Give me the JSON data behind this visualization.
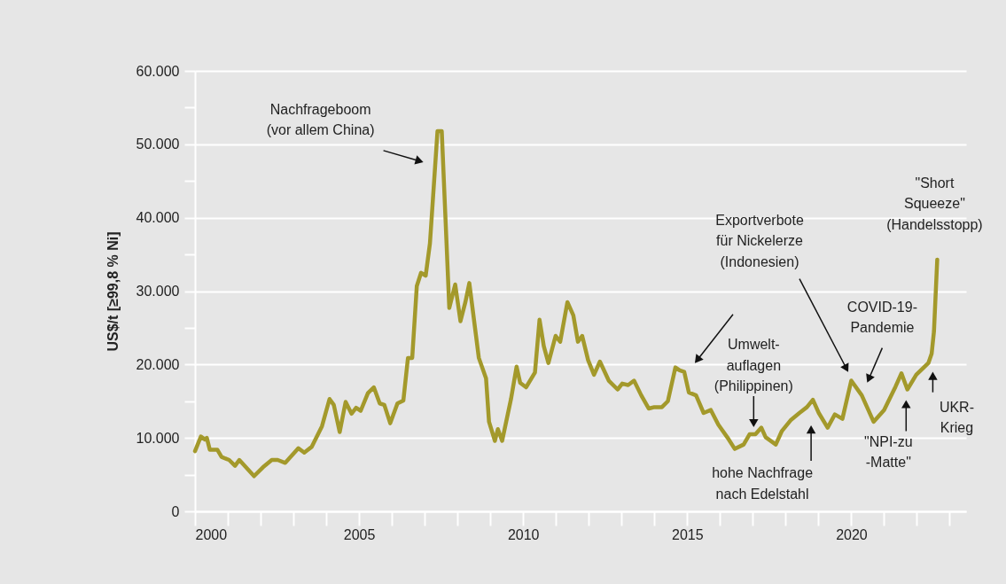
{
  "chart_data": {
    "type": "line",
    "ylabel": "US$/t [≥99,8 % Ni]",
    "x": [
      2000.0,
      2000.18,
      2000.3,
      2000.36,
      2000.45,
      2000.68,
      2000.81,
      2001.04,
      2001.22,
      2001.35,
      2001.8,
      2002.07,
      2002.34,
      2002.52,
      2002.75,
      2003.15,
      2003.33,
      2003.56,
      2003.87,
      2004.1,
      2004.23,
      2004.41,
      2004.59,
      2004.77,
      2004.91,
      2005.05,
      2005.27,
      2005.45,
      2005.63,
      2005.77,
      2005.95,
      2006.17,
      2006.35,
      2006.49,
      2006.62,
      2006.76,
      2006.89,
      2007.03,
      2007.16,
      2007.39,
      2007.52,
      2007.75,
      2007.93,
      2008.09,
      2008.24,
      2008.36,
      2008.65,
      2008.87,
      2008.96,
      2009.14,
      2009.23,
      2009.36,
      2009.63,
      2009.8,
      2009.91,
      2010.09,
      2010.36,
      2010.5,
      2010.63,
      2010.77,
      2010.99,
      2011.13,
      2011.35,
      2011.53,
      2011.67,
      2011.8,
      2011.98,
      2012.16,
      2012.34,
      2012.61,
      2012.88,
      2013.02,
      2013.2,
      2013.38,
      2013.6,
      2013.83,
      2014.0,
      2014.23,
      2014.41,
      2014.64,
      2014.77,
      2014.91,
      2015.05,
      2015.27,
      2015.5,
      2015.72,
      2015.95,
      2016.22,
      2016.45,
      2016.72,
      2016.9,
      2017.08,
      2017.26,
      2017.39,
      2017.7,
      2017.88,
      2018.15,
      2018.42,
      2018.65,
      2018.83,
      2019.01,
      2019.28,
      2019.5,
      2019.73,
      2020.0,
      2020.32,
      2020.68,
      2021.0,
      2021.35,
      2021.53,
      2021.71,
      2021.98,
      2022.35,
      2022.45,
      2022.52,
      2022.62
    ],
    "series": [
      {
        "color": "#a3992b",
        "values": [
          8200,
          10200,
          9800,
          10000,
          8400,
          8400,
          7400,
          7000,
          6200,
          7000,
          4800,
          6000,
          7000,
          7000,
          6600,
          8600,
          8000,
          8800,
          11600,
          15300,
          14500,
          10800,
          14900,
          13300,
          14100,
          13700,
          16100,
          16900,
          14700,
          14500,
          12000,
          14700,
          15100,
          20900,
          20900,
          30700,
          32500,
          32100,
          36500,
          51800,
          51800,
          27700,
          30900,
          25900,
          28500,
          31100,
          20900,
          18100,
          12200,
          9600,
          11200,
          9600,
          15300,
          19700,
          17500,
          16900,
          18900,
          26100,
          22500,
          20200,
          23900,
          23100,
          28500,
          26700,
          23100,
          23900,
          20600,
          18600,
          20400,
          17800,
          16600,
          17400,
          17200,
          17800,
          15800,
          14000,
          14200,
          14200,
          15000,
          19600,
          19200,
          19000,
          16200,
          15800,
          13400,
          13800,
          11800,
          10100,
          8500,
          9100,
          10500,
          10500,
          11400,
          10100,
          9100,
          10900,
          12400,
          13400,
          14200,
          15200,
          13400,
          11400,
          13200,
          12600,
          17800,
          15800,
          12200,
          13800,
          17000,
          18800,
          16600,
          18600,
          20200,
          21500,
          24500,
          34300
        ]
      }
    ],
    "xlim": [
      2000,
      2023.5
    ],
    "xticks": [
      2000,
      {
        "value": 2001,
        "label": null
      },
      {
        "value": 2002,
        "label": null
      },
      {
        "value": 2003,
        "label": null
      },
      {
        "value": 2004,
        "label": null
      },
      2005,
      {
        "value": 2006,
        "label": null
      },
      {
        "value": 2007,
        "label": null
      },
      {
        "value": 2008,
        "label": null
      },
      {
        "value": 2009,
        "label": null
      },
      2010,
      {
        "value": 2011,
        "label": null
      },
      {
        "value": 2012,
        "label": null
      },
      {
        "value": 2013,
        "label": null
      },
      {
        "value": 2014,
        "label": null
      },
      2015,
      {
        "value": 2016,
        "label": null
      },
      {
        "value": 2017,
        "label": null
      },
      {
        "value": 2018,
        "label": null
      },
      {
        "value": 2019,
        "label": null
      },
      2020,
      {
        "value": 2021,
        "label": null
      },
      {
        "value": 2022,
        "label": null
      },
      {
        "value": 2023,
        "label": null
      }
    ],
    "ylim": [
      0,
      60000
    ],
    "yticks": [
      0,
      {
        "value": 5000,
        "label": null
      },
      {
        "value": 10000,
        "label": "10.000"
      },
      {
        "value": 15000,
        "label": null
      },
      {
        "value": 20000,
        "label": "20.000"
      },
      {
        "value": 25000,
        "label": null
      },
      {
        "value": 30000,
        "label": "30.000"
      },
      {
        "value": 35000,
        "label": null
      },
      {
        "value": 40000,
        "label": "40.000"
      },
      {
        "value": 45000,
        "label": null
      },
      {
        "value": 50000,
        "label": "50.000"
      },
      {
        "value": 55000,
        "label": null
      },
      {
        "value": 60000,
        "label": "60.000"
      }
    ],
    "grid": "y",
    "annotations": [
      "Nachfrageboom\n(vor allem China)",
      "Exportverbote\nfür Nickelerze\n(Indonesien)",
      {
        "text": "Umwelt-\nauflagen\n(Philippinen)",
        "x": 2017.08,
        "y": 10500
      },
      "hohe Nachfrage\nnach Edelstahl",
      "COVID-19-\nPandemie",
      "\"NPI-zu\n-Matte\"",
      {
        "text": "UKR-\nKrieg",
        "x": 2022.35,
        "y": 20200
      },
      {
        "text": "\"Short\nSqueeze\"\n(Handelsstopp)",
        "x": 2022.62,
        "y": 34300
      }
    ]
  }
}
